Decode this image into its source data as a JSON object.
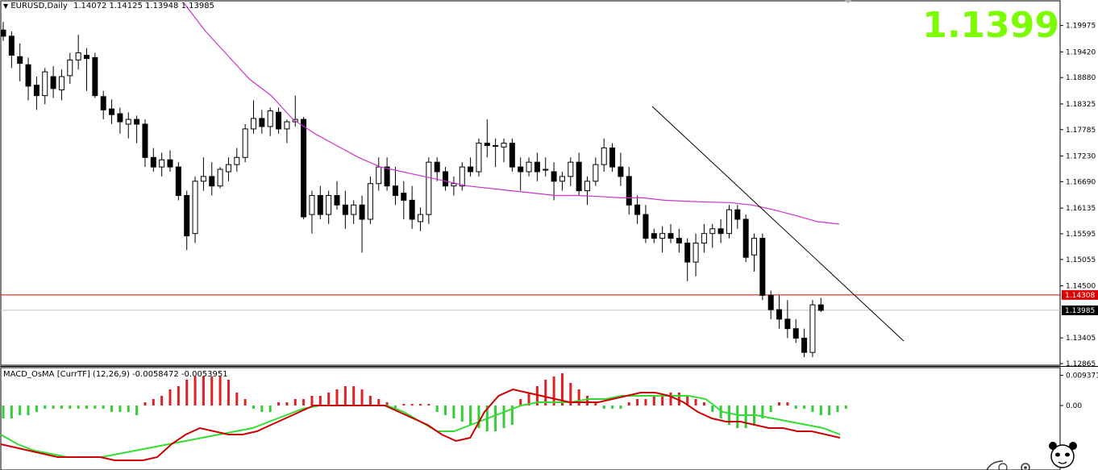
{
  "header": {
    "symbol": "EURUSD,Daily",
    "ohlc": "1.14072 1.14125 1.13948 1.13985"
  },
  "big_price": "1.1399",
  "indicator_header": "MACD_OsMA [CurrTF] (12,26,9) -0.0058472 -0.0053951",
  "price_tags": {
    "red_line": "1.14308",
    "current": "1.13985"
  },
  "colors": {
    "bull_candle": "#ffffff",
    "bear_candle": "#000000",
    "ma_line": "#cc33cc",
    "red_hline": "#dd0000",
    "current_hline": "#c0c0c0",
    "macd_pos": "#dd2222",
    "macd_neg": "#33cc33",
    "signal_red": "#cc0000",
    "signal_green": "#33dd33",
    "big_price": "#7cfc00"
  },
  "chart_data": [
    {
      "type": "candlestick",
      "title": "EURUSD,Daily",
      "y_ticks": [
        "1.19975",
        "1.19420",
        "1.18880",
        "1.18325",
        "1.17785",
        "1.17230",
        "1.16690",
        "1.16135",
        "1.15595",
        "1.15055",
        "1.14500",
        "1.13405",
        "1.12865"
      ],
      "y_tick_values": [
        1.19975,
        1.1942,
        1.1888,
        1.18325,
        1.17785,
        1.1723,
        1.1669,
        1.16135,
        1.15595,
        1.15055,
        1.145,
        1.13405,
        1.12865
      ],
      "ylim": [
        1.12865,
        1.20155
      ],
      "ohlc": [
        [
          1.1988,
          1.2005,
          1.1965,
          1.1975
        ],
        [
          1.1975,
          1.1985,
          1.1908,
          1.1935
        ],
        [
          1.1932,
          1.196,
          1.188,
          1.1918
        ],
        [
          1.1915,
          1.193,
          1.184,
          1.187
        ],
        [
          1.1872,
          1.189,
          1.182,
          1.185
        ],
        [
          1.185,
          1.1908,
          1.1832,
          1.19
        ],
        [
          1.189,
          1.1912,
          1.1845,
          1.1865
        ],
        [
          1.1862,
          1.1905,
          1.184,
          1.189
        ],
        [
          1.1892,
          1.194,
          1.1875,
          1.1925
        ],
        [
          1.1925,
          1.1978,
          1.1905,
          1.194
        ],
        [
          1.1935,
          1.195,
          1.186,
          1.1928
        ],
        [
          1.193,
          1.194,
          1.1845,
          1.185
        ],
        [
          1.1848,
          1.186,
          1.18,
          1.182
        ],
        [
          1.1822,
          1.1842,
          1.179,
          1.181
        ],
        [
          1.1812,
          1.1825,
          1.177,
          1.1795
        ],
        [
          1.179,
          1.1815,
          1.176,
          1.18
        ],
        [
          1.18,
          1.1808,
          1.175,
          1.179
        ],
        [
          1.179,
          1.18,
          1.17,
          1.172
        ],
        [
          1.172,
          1.174,
          1.169,
          1.17
        ],
        [
          1.17,
          1.173,
          1.168,
          1.1715
        ],
        [
          1.1715,
          1.1735,
          1.169,
          1.17
        ],
        [
          1.17,
          1.171,
          1.163,
          1.164
        ],
        [
          1.164,
          1.165,
          1.1525,
          1.1555
        ],
        [
          1.156,
          1.168,
          1.154,
          1.167
        ],
        [
          1.167,
          1.172,
          1.165,
          1.168
        ],
        [
          1.168,
          1.171,
          1.164,
          1.166
        ],
        [
          1.166,
          1.17,
          1.1655,
          1.1695
        ],
        [
          1.169,
          1.172,
          1.167,
          1.1705
        ],
        [
          1.1705,
          1.174,
          1.169,
          1.172
        ],
        [
          1.172,
          1.179,
          1.171,
          1.178
        ],
        [
          1.178,
          1.184,
          1.177,
          1.1802
        ],
        [
          1.1802,
          1.182,
          1.177,
          1.1785
        ],
        [
          1.1785,
          1.1825,
          1.1765,
          1.1818
        ],
        [
          1.1815,
          1.1825,
          1.177,
          1.178
        ],
        [
          1.178,
          1.18,
          1.175,
          1.1795
        ],
        [
          1.1795,
          1.185,
          1.1785,
          1.18
        ],
        [
          1.18,
          1.1805,
          1.159,
          1.1595
        ],
        [
          1.16,
          1.165,
          1.156,
          1.164
        ],
        [
          1.164,
          1.166,
          1.159,
          1.16
        ],
        [
          1.16,
          1.165,
          1.158,
          1.164
        ],
        [
          1.164,
          1.167,
          1.161,
          1.162
        ],
        [
          1.162,
          1.165,
          1.157,
          1.16
        ],
        [
          1.16,
          1.163,
          1.158,
          1.162
        ],
        [
          1.162,
          1.164,
          1.152,
          1.159
        ],
        [
          1.159,
          1.168,
          1.158,
          1.1665
        ],
        [
          1.1665,
          1.172,
          1.165,
          1.17
        ],
        [
          1.17,
          1.172,
          1.165,
          1.166
        ],
        [
          1.166,
          1.17,
          1.162,
          1.164
        ],
        [
          1.1645,
          1.167,
          1.159,
          1.163
        ],
        [
          1.163,
          1.166,
          1.157,
          1.159
        ],
        [
          1.1585,
          1.1615,
          1.1565,
          1.16
        ],
        [
          1.16,
          1.172,
          1.158,
          1.171
        ],
        [
          1.171,
          1.172,
          1.167,
          1.169
        ],
        [
          1.169,
          1.17,
          1.165,
          1.166
        ],
        [
          1.166,
          1.168,
          1.164,
          1.1665
        ],
        [
          1.166,
          1.171,
          1.165,
          1.17
        ],
        [
          1.17,
          1.172,
          1.168,
          1.169
        ],
        [
          1.169,
          1.176,
          1.168,
          1.175
        ],
        [
          1.175,
          1.18,
          1.172,
          1.1745
        ],
        [
          1.1745,
          1.176,
          1.17,
          1.1745
        ],
        [
          1.1742,
          1.176,
          1.171,
          1.175
        ],
        [
          1.175,
          1.176,
          1.169,
          1.17
        ],
        [
          1.17,
          1.172,
          1.165,
          1.169
        ],
        [
          1.169,
          1.172,
          1.168,
          1.171
        ],
        [
          1.171,
          1.173,
          1.167,
          1.169
        ],
        [
          1.1695,
          1.172,
          1.168,
          1.1695
        ],
        [
          1.169,
          1.171,
          1.163,
          1.167
        ],
        [
          1.167,
          1.169,
          1.165,
          1.168
        ],
        [
          1.168,
          1.172,
          1.166,
          1.171
        ],
        [
          1.171,
          1.173,
          1.164,
          1.165
        ],
        [
          1.165,
          1.168,
          1.162,
          1.167
        ],
        [
          1.167,
          1.172,
          1.166,
          1.1705
        ],
        [
          1.1705,
          1.176,
          1.169,
          1.174
        ],
        [
          1.174,
          1.175,
          1.169,
          1.17
        ],
        [
          1.17,
          1.173,
          1.166,
          1.168
        ],
        [
          1.168,
          1.17,
          1.16,
          1.162
        ],
        [
          1.162,
          1.164,
          1.158,
          1.16
        ],
        [
          1.16,
          1.162,
          1.154,
          1.155
        ],
        [
          1.156,
          1.157,
          1.154,
          1.155
        ],
        [
          1.155,
          1.1575,
          1.152,
          1.156
        ],
        [
          1.156,
          1.158,
          1.154,
          1.155
        ],
        [
          1.155,
          1.157,
          1.152,
          1.154
        ],
        [
          1.154,
          1.155,
          1.146,
          1.15
        ],
        [
          1.15,
          1.156,
          1.147,
          1.154
        ],
        [
          1.154,
          1.158,
          1.152,
          1.156
        ],
        [
          1.156,
          1.158,
          1.153,
          1.157
        ],
        [
          1.157,
          1.159,
          1.154,
          1.156
        ],
        [
          1.156,
          1.162,
          1.155,
          1.161
        ],
        [
          1.161,
          1.162,
          1.157,
          1.159
        ],
        [
          1.159,
          1.16,
          1.15,
          1.151
        ],
        [
          1.1515,
          1.156,
          1.148,
          1.155
        ],
        [
          1.155,
          1.156,
          1.142,
          1.143
        ],
        [
          1.143,
          1.144,
          1.138,
          1.14
        ],
        [
          1.14,
          1.143,
          1.136,
          1.138
        ],
        [
          1.138,
          1.142,
          1.134,
          1.136
        ],
        [
          1.136,
          1.138,
          1.133,
          1.134
        ],
        [
          1.134,
          1.136,
          1.13,
          1.131
        ],
        [
          1.131,
          1.142,
          1.13,
          1.141
        ],
        [
          1.141,
          1.1425,
          1.1395,
          1.13985
        ]
      ],
      "moving_average": [
        1.2045,
        1.1985,
        1.1935,
        1.1885,
        1.185,
        1.18,
        1.177,
        1.1745,
        1.172,
        1.17,
        1.169,
        1.168,
        1.167,
        1.166,
        1.1655,
        1.165,
        1.1645,
        1.164,
        1.164,
        1.1638,
        1.1635,
        1.1635,
        1.163,
        1.1628,
        1.1626,
        1.1625,
        1.162,
        1.161,
        1.1598,
        1.1585,
        1.158
      ],
      "moving_average_x_start_bar": 30,
      "horizontal_lines": [
        1.14308,
        1.13985
      ],
      "trendline": [
        [
          1.183,
          84
        ],
        [
          1.1333,
          116
        ]
      ]
    },
    {
      "type": "histogram",
      "title": "MACD_OsMA [CurrTF] (12,26,9) -0.0058472 -0.0053951",
      "y_ticks": [
        "0.009371",
        "0.00"
      ],
      "y_tick_values": [
        0.009371,
        0.0
      ],
      "ylim": [
        -0.02,
        0.01
      ],
      "osma": [
        -0.004,
        -0.004,
        -0.003,
        -0.003,
        -0.002,
        -0.001,
        -0.001,
        -0.001,
        -0.001,
        -0.001,
        -0.001,
        -0.001,
        -0.001,
        -0.002,
        -0.002,
        -0.002,
        -0.003,
        0.001,
        0.002,
        0.003,
        0.005,
        0.006,
        0.008,
        0.009,
        0.009,
        0.009,
        0.009,
        0.008,
        0.004,
        0.002,
        -0.001,
        -0.002,
        -0.002,
        0.001,
        0.001,
        0.002,
        0.002,
        0.003,
        0.003,
        0.004,
        0.005,
        0.006,
        0.006,
        0.005,
        0.003,
        0.002,
        0.001,
        -0.001,
        0.0005,
        0.0005,
        0.0005,
        0.0005,
        -0.002,
        -0.003,
        -0.004,
        -0.005,
        -0.006,
        -0.007,
        -0.008,
        -0.008,
        -0.007,
        -0.006,
        0.002,
        0.004,
        0.006,
        0.008,
        0.009,
        0.01,
        0.007,
        0.005,
        0.003,
        0.001,
        -0.001,
        -0.001,
        -0.001,
        0.001,
        0.002,
        0.002,
        0.003,
        0.003,
        0.004,
        0.004,
        0.003,
        0.002,
        0.001,
        -0.002,
        -0.004,
        -0.006,
        -0.007,
        -0.007,
        -0.006,
        -0.004,
        -0.002,
        0.001,
        0.001,
        -0.001,
        -0.001,
        -0.002,
        -0.003,
        -0.003,
        -0.002,
        -0.001
      ],
      "macd_red": [
        -0.012,
        -0.013,
        -0.014,
        -0.015,
        -0.016,
        -0.016,
        -0.016,
        -0.016,
        -0.017,
        -0.017,
        -0.017,
        -0.016,
        -0.012,
        -0.009,
        -0.007,
        -0.008,
        -0.009,
        -0.009,
        -0.008,
        -0.006,
        -0.004,
        -0.002,
        0.0,
        0.0,
        0.0,
        0.0,
        0.0,
        0.0,
        -0.002,
        -0.004,
        -0.006,
        -0.009,
        -0.011,
        -0.01,
        -0.002,
        0.003,
        0.005,
        0.004,
        0.003,
        0.002,
        0.001,
        0.001,
        0.001,
        0.002,
        0.003,
        0.004,
        0.004,
        0.003,
        0.001,
        -0.002,
        -0.004,
        -0.005,
        -0.005,
        -0.006,
        -0.007,
        -0.007,
        -0.008,
        -0.008,
        -0.009,
        -0.01
      ],
      "signal_green": [
        -0.009,
        -0.012,
        -0.014,
        -0.015,
        -0.016,
        -0.016,
        -0.016,
        -0.015,
        -0.014,
        -0.013,
        -0.012,
        -0.011,
        -0.01,
        -0.009,
        -0.008,
        -0.007,
        -0.005,
        -0.003,
        -0.001,
        0.0,
        0.0,
        0.0,
        0.0,
        0.0,
        -0.002,
        -0.005,
        -0.008,
        -0.008,
        -0.006,
        -0.004,
        -0.002,
        0.0,
        0.001,
        0.001,
        0.001,
        0.002,
        0.002,
        0.003,
        0.003,
        0.003,
        0.003,
        0.003,
        0.002,
        -0.002,
        -0.003,
        -0.003,
        -0.004,
        -0.005,
        -0.006,
        -0.007,
        -0.009
      ]
    }
  ]
}
